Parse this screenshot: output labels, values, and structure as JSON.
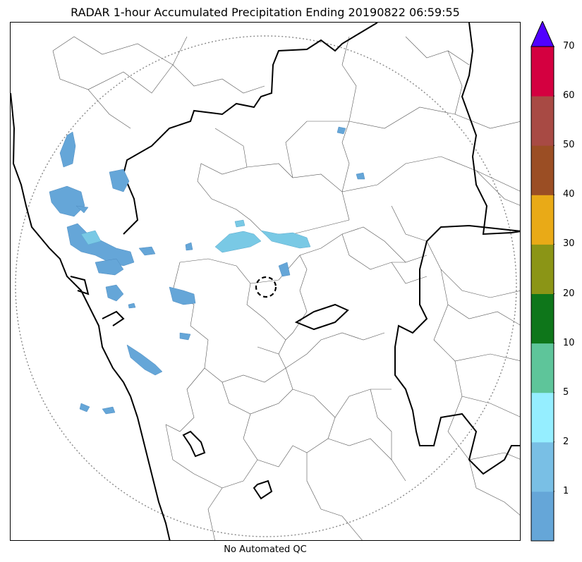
{
  "title": "RADAR 1-hour Accumulated Precipitation Ending 20190822 06:59:55",
  "footer": "No Automated QC",
  "colorbar": {
    "ticks": [
      "1",
      "2",
      "5",
      "10",
      "20",
      "30",
      "40",
      "50",
      "60",
      "70"
    ],
    "colors": [
      "#65a6d8",
      "#79bfe5",
      "#95eeff",
      "#5ec59a",
      "#0e761a",
      "#8b9516",
      "#e9aa17",
      "#9b4e24",
      "#a84a44",
      "#d40040"
    ],
    "overflow_color": "#5000ff"
  },
  "map": {
    "features": [
      "radar-range-ring",
      "radar-site-marker",
      "coastline",
      "state-borders",
      "district-borders"
    ],
    "precip_color": "#65a6d8",
    "light_precip_color": "#79c9e5"
  }
}
